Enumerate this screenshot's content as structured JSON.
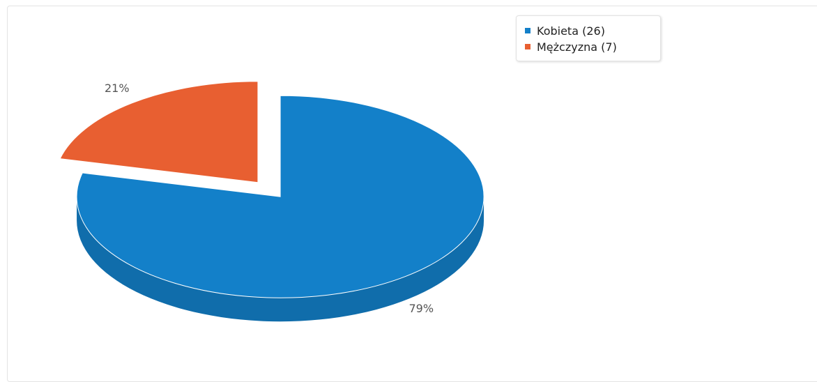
{
  "chart_data": {
    "type": "pie",
    "title": "",
    "categories": [
      "Kobieta",
      "Mężczyzna"
    ],
    "values": [
      26,
      7
    ],
    "percent_labels": [
      "79%",
      "21%"
    ],
    "colors": [
      "#1380c9",
      "#e85f31"
    ],
    "legend": {
      "placement": "top-right",
      "entries": [
        "Kobieta (26)",
        "Mężczyzna (7)"
      ]
    }
  }
}
